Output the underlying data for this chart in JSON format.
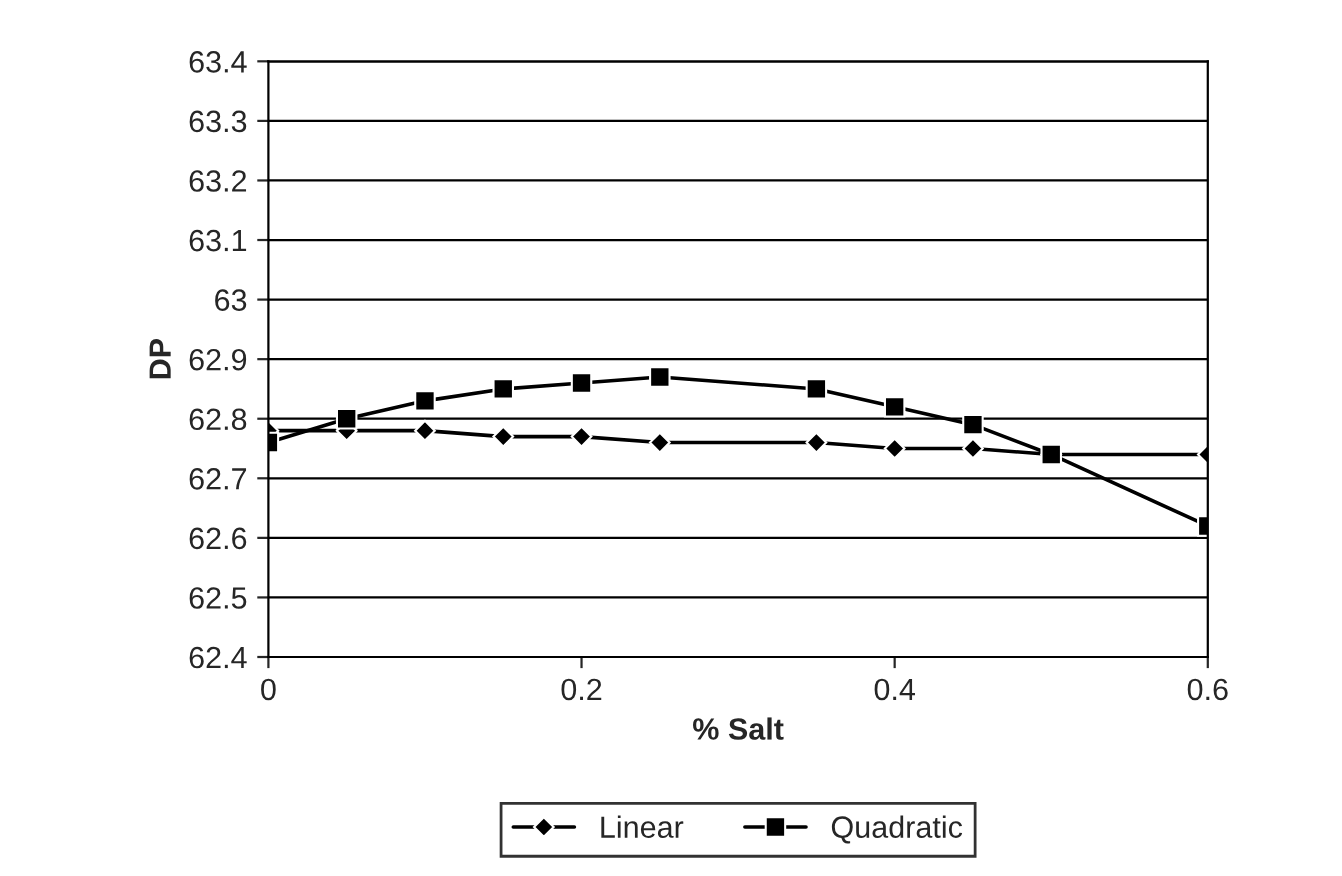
{
  "chart_data": {
    "type": "line",
    "xlabel": "% Salt",
    "ylabel": "DP",
    "xlim": [
      0,
      0.6
    ],
    "xticks": [
      {
        "value": 0,
        "label": "0"
      },
      0.2,
      0.4,
      0.6
    ],
    "ylim": [
      62.4,
      63.4
    ],
    "yticks": [
      62.4,
      62.5,
      62.6,
      62.7,
      62.8,
      62.9,
      {
        "value": 63,
        "label": "63"
      },
      63.1,
      63.2,
      63.3,
      63.4
    ],
    "grid": "y",
    "legend": "bottom",
    "series": [
      {
        "name": "Linear",
        "color": "#000000",
        "marker": "diamond",
        "x": [
          0,
          0.05,
          0.1,
          0.15,
          0.2,
          0.25,
          0.35,
          0.4,
          0.45,
          0.5,
          0.6
        ],
        "values": [
          62.78,
          62.78,
          62.78,
          62.77,
          62.77,
          62.76,
          62.76,
          62.75,
          62.75,
          62.74,
          62.74
        ]
      },
      {
        "name": "Quadratic",
        "color": "#000000",
        "marker": "square",
        "x": [
          0,
          0.05,
          0.1,
          0.15,
          0.2,
          0.25,
          0.35,
          0.4,
          0.45,
          0.5,
          0.6
        ],
        "values": [
          62.76,
          62.8,
          62.83,
          62.85,
          62.86,
          62.87,
          62.85,
          62.82,
          62.79,
          62.74,
          62.62
        ]
      }
    ]
  }
}
